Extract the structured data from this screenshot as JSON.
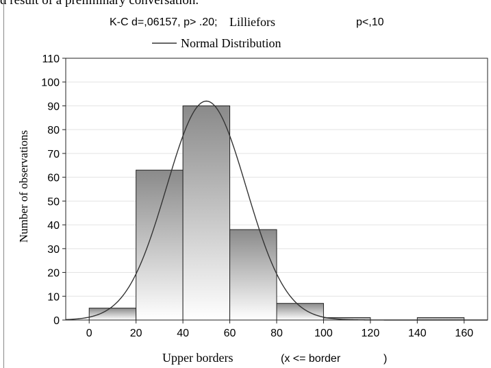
{
  "page": {
    "top_fragment": "d result of a preliminary conversation."
  },
  "chart_data": {
    "type": "bar",
    "title_parts": [
      "K-C d=,06157, p> .20;",
      "Lilliefors",
      "p<,10"
    ],
    "legend": [
      "Normal Distribution"
    ],
    "xlabel_parts": [
      "Upper borders",
      "(x <= border",
      ")"
    ],
    "ylabel": "Number of observations",
    "xlim": [
      -10,
      170
    ],
    "ylim": [
      0,
      110
    ],
    "x_ticks": [
      0,
      20,
      40,
      60,
      80,
      100,
      120,
      140,
      160
    ],
    "y_ticks": [
      0,
      10,
      20,
      30,
      40,
      50,
      60,
      70,
      80,
      90,
      100,
      110
    ],
    "bins": [
      {
        "from": -10,
        "to": 0,
        "value": 0
      },
      {
        "from": 0,
        "to": 20,
        "value": 5
      },
      {
        "from": 20,
        "to": 40,
        "value": 63
      },
      {
        "from": 40,
        "to": 60,
        "value": 90
      },
      {
        "from": 60,
        "to": 80,
        "value": 38
      },
      {
        "from": 80,
        "to": 100,
        "value": 7
      },
      {
        "from": 100,
        "to": 120,
        "value": 1
      },
      {
        "from": 120,
        "to": 140,
        "value": 0
      },
      {
        "from": 140,
        "to": 160,
        "value": 1
      }
    ],
    "normal_curve": {
      "mean": 50,
      "sd": 17,
      "peak": 92
    },
    "grid": true,
    "colors": {
      "bar_light": "#ffffff",
      "bar_dark": "#8a8a8a",
      "bar_stroke": "#222222",
      "curve": "#333333",
      "grid": "#e3e3e3"
    }
  }
}
